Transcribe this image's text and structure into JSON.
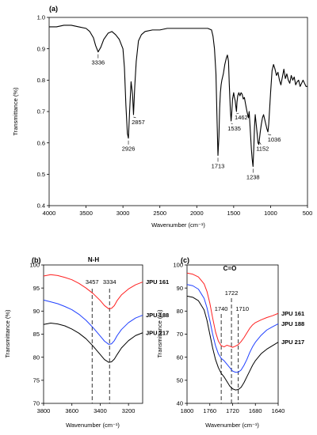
{
  "chart_data": [
    {
      "id": "a",
      "type": "line",
      "panel_label": "(a)",
      "xlabel": "Wavenumber (cm⁻¹)",
      "ylabel": "Transmittance (%)",
      "xlim": [
        4000,
        500
      ],
      "ylim": [
        0.4,
        1.0
      ],
      "x_reversed": true,
      "xticks": [
        4000,
        3500,
        3000,
        2500,
        2000,
        1500,
        1000,
        500
      ],
      "yticks": [
        0.4,
        0.5,
        0.6,
        0.7,
        0.8,
        0.9,
        1.0
      ],
      "ytick_labels": [
        "0.4",
        "0.5",
        "0.6",
        "0.7",
        "0.8",
        "0.9",
        "1.0"
      ],
      "color": "#000000",
      "series": [
        {
          "x": [
            4000,
            3900,
            3800,
            3700,
            3600,
            3500,
            3450,
            3400,
            3370,
            3336,
            3300,
            3260,
            3200,
            3150,
            3100,
            3050,
            3000,
            2980,
            2960,
            2940,
            2926,
            2910,
            2890,
            2870,
            2857,
            2840,
            2820,
            2790,
            2750,
            2700,
            2600,
            2500,
            2400,
            2300,
            2200,
            2100,
            2000,
            1900,
            1850,
            1800,
            1780,
            1760,
            1740,
            1725,
            1713,
            1700,
            1690,
            1680,
            1670,
            1660,
            1640,
            1620,
            1600,
            1585,
            1570,
            1560,
            1545,
            1535,
            1525,
            1515,
            1500,
            1490,
            1480,
            1470,
            1462,
            1455,
            1445,
            1430,
            1415,
            1400,
            1385,
            1370,
            1355,
            1340,
            1320,
            1300,
            1290,
            1280,
            1270,
            1260,
            1250,
            1238,
            1228,
            1218,
            1208,
            1195,
            1180,
            1170,
            1160,
            1152,
            1140,
            1125,
            1110,
            1095,
            1080,
            1065,
            1050,
            1036,
            1025,
            1015,
            1000,
            980,
            960,
            940,
            920,
            900,
            880,
            860,
            840,
            820,
            800,
            780,
            760,
            740,
            720,
            700,
            680,
            660,
            640,
            620,
            600,
            580,
            560,
            540,
            520,
            500
          ],
          "y": [
            0.97,
            0.97,
            0.975,
            0.975,
            0.97,
            0.965,
            0.955,
            0.935,
            0.91,
            0.89,
            0.905,
            0.93,
            0.95,
            0.955,
            0.945,
            0.93,
            0.9,
            0.84,
            0.72,
            0.63,
            0.615,
            0.7,
            0.795,
            0.755,
            0.69,
            0.78,
            0.86,
            0.925,
            0.945,
            0.955,
            0.96,
            0.96,
            0.965,
            0.965,
            0.965,
            0.965,
            0.965,
            0.965,
            0.965,
            0.96,
            0.94,
            0.9,
            0.82,
            0.67,
            0.56,
            0.62,
            0.71,
            0.76,
            0.785,
            0.8,
            0.82,
            0.85,
            0.87,
            0.88,
            0.86,
            0.79,
            0.705,
            0.67,
            0.7,
            0.74,
            0.76,
            0.745,
            0.735,
            0.715,
            0.7,
            0.73,
            0.75,
            0.76,
            0.75,
            0.76,
            0.755,
            0.74,
            0.745,
            0.725,
            0.7,
            0.68,
            0.7,
            0.66,
            0.62,
            0.58,
            0.55,
            0.525,
            0.58,
            0.65,
            0.69,
            0.66,
            0.625,
            0.6,
            0.595,
            0.61,
            0.635,
            0.66,
            0.68,
            0.69,
            0.675,
            0.66,
            0.645,
            0.635,
            0.66,
            0.7,
            0.76,
            0.83,
            0.85,
            0.835,
            0.815,
            0.825,
            0.8,
            0.785,
            0.81,
            0.835,
            0.805,
            0.82,
            0.8,
            0.79,
            0.815,
            0.8,
            0.81,
            0.785,
            0.795,
            0.8,
            0.78,
            0.79,
            0.8,
            0.79,
            0.78,
            0.78
          ]
        }
      ],
      "annotations": [
        {
          "text": "3336",
          "x": 3336
        },
        {
          "text": "2926",
          "x": 2926
        },
        {
          "text": "2857",
          "x": 2857
        },
        {
          "text": "1713",
          "x": 1713
        },
        {
          "text": "1535",
          "x": 1535
        },
        {
          "text": "1462",
          "x": 1462
        },
        {
          "text": "1238",
          "x": 1238
        },
        {
          "text": "1152",
          "x": 1152
        },
        {
          "text": "1036",
          "x": 1036
        }
      ]
    },
    {
      "id": "b",
      "type": "line",
      "panel_label": "(b)",
      "title": "N-H",
      "xlabel": "Wavenumber (cm⁻¹)",
      "ylabel": "Transmittance (%)",
      "xlim": [
        3800,
        3100
      ],
      "ylim": [
        70,
        100
      ],
      "x_reversed": true,
      "xticks": [
        3800,
        3600,
        3400,
        3200
      ],
      "yticks": [
        70,
        75,
        80,
        85,
        90,
        95,
        100
      ],
      "dashed_lines": [
        {
          "x": 3457,
          "label": "3457"
        },
        {
          "x": 3334,
          "label": "3334"
        }
      ],
      "series": [
        {
          "name": "JPU 161",
          "color": "#ff2020",
          "x": [
            3800,
            3750,
            3700,
            3650,
            3600,
            3550,
            3500,
            3450,
            3400,
            3370,
            3340,
            3320,
            3300,
            3280,
            3250,
            3200,
            3150,
            3100
          ],
          "y": [
            97.6,
            97.9,
            97.7,
            97.3,
            96.8,
            96.0,
            95.0,
            93.8,
            92.3,
            91.2,
            90.5,
            90.6,
            91.2,
            92.3,
            93.5,
            94.8,
            95.7,
            96.3
          ]
        },
        {
          "name": "JPU 188",
          "color": "#2040ff",
          "x": [
            3800,
            3750,
            3700,
            3650,
            3600,
            3550,
            3500,
            3450,
            3400,
            3370,
            3340,
            3320,
            3300,
            3280,
            3250,
            3200,
            3150,
            3100
          ],
          "y": [
            92.4,
            92.0,
            91.6,
            91.0,
            90.3,
            89.3,
            88.0,
            86.4,
            84.6,
            83.5,
            82.8,
            82.9,
            83.6,
            84.7,
            86.0,
            87.5,
            88.5,
            89.1
          ]
        },
        {
          "name": "JPU 217",
          "color": "#000000",
          "x": [
            3800,
            3750,
            3700,
            3650,
            3600,
            3550,
            3500,
            3450,
            3400,
            3370,
            3340,
            3320,
            3300,
            3280,
            3250,
            3200,
            3150,
            3100
          ],
          "y": [
            87.1,
            87.4,
            87.2,
            86.8,
            86.1,
            85.2,
            84.0,
            82.4,
            80.6,
            79.5,
            78.9,
            79.0,
            79.6,
            80.6,
            82.0,
            83.6,
            84.7,
            85.3
          ]
        }
      ]
    },
    {
      "id": "c",
      "type": "line",
      "panel_label": "(c)",
      "title": "C=O",
      "xlabel": "Wavenumber (cm⁻¹)",
      "ylabel": "Transmittance (%)",
      "xlim": [
        1800,
        1640
      ],
      "ylim": [
        40,
        100
      ],
      "x_reversed": true,
      "xticks": [
        1800,
        1760,
        1720,
        1680,
        1640
      ],
      "yticks": [
        40,
        50,
        60,
        70,
        80,
        90,
        100
      ],
      "dashed_lines": [
        {
          "x": 1740,
          "label": "1740"
        },
        {
          "x": 1722,
          "label": "1722"
        },
        {
          "x": 1710,
          "label": "1710"
        }
      ],
      "series": [
        {
          "name": "JPU 161",
          "color": "#ff2020",
          "x": [
            1800,
            1790,
            1780,
            1770,
            1765,
            1760,
            1755,
            1750,
            1745,
            1740,
            1735,
            1730,
            1725,
            1720,
            1715,
            1710,
            1705,
            1700,
            1695,
            1690,
            1685,
            1680,
            1670,
            1660,
            1650,
            1640
          ],
          "y": [
            96.5,
            96.0,
            94.8,
            91.8,
            88.5,
            83.5,
            77.0,
            71.0,
            67.0,
            65.0,
            64.5,
            65.2,
            64.8,
            64.3,
            64.8,
            65.5,
            66.8,
            68.5,
            70.5,
            72.5,
            74.0,
            75.0,
            76.2,
            77.2,
            78.0,
            79.0
          ]
        },
        {
          "name": "JPU 188",
          "color": "#2040ff",
          "x": [
            1800,
            1790,
            1780,
            1770,
            1765,
            1760,
            1755,
            1750,
            1745,
            1740,
            1735,
            1730,
            1725,
            1720,
            1715,
            1710,
            1705,
            1700,
            1695,
            1690,
            1685,
            1680,
            1670,
            1660,
            1650,
            1640
          ],
          "y": [
            91.5,
            91.0,
            89.5,
            85.5,
            81.5,
            76.0,
            70.0,
            65.0,
            61.5,
            59.5,
            58.5,
            57.0,
            55.5,
            54.0,
            53.5,
            53.5,
            54.5,
            56.5,
            59.0,
            62.0,
            64.5,
            66.5,
            69.5,
            71.8,
            73.2,
            74.5
          ]
        },
        {
          "name": "JPU 217",
          "color": "#000000",
          "x": [
            1800,
            1790,
            1780,
            1770,
            1765,
            1760,
            1755,
            1750,
            1745,
            1740,
            1735,
            1730,
            1725,
            1720,
            1715,
            1710,
            1705,
            1700,
            1695,
            1690,
            1685,
            1680,
            1670,
            1660,
            1650,
            1640
          ],
          "y": [
            86.5,
            86.0,
            84.5,
            80.5,
            76.0,
            70.0,
            64.0,
            59.0,
            55.5,
            53.0,
            51.5,
            49.5,
            47.5,
            46.3,
            45.8,
            46.0,
            47.0,
            49.0,
            51.5,
            54.0,
            56.5,
            58.5,
            61.5,
            63.5,
            65.0,
            66.5
          ]
        }
      ]
    }
  ]
}
